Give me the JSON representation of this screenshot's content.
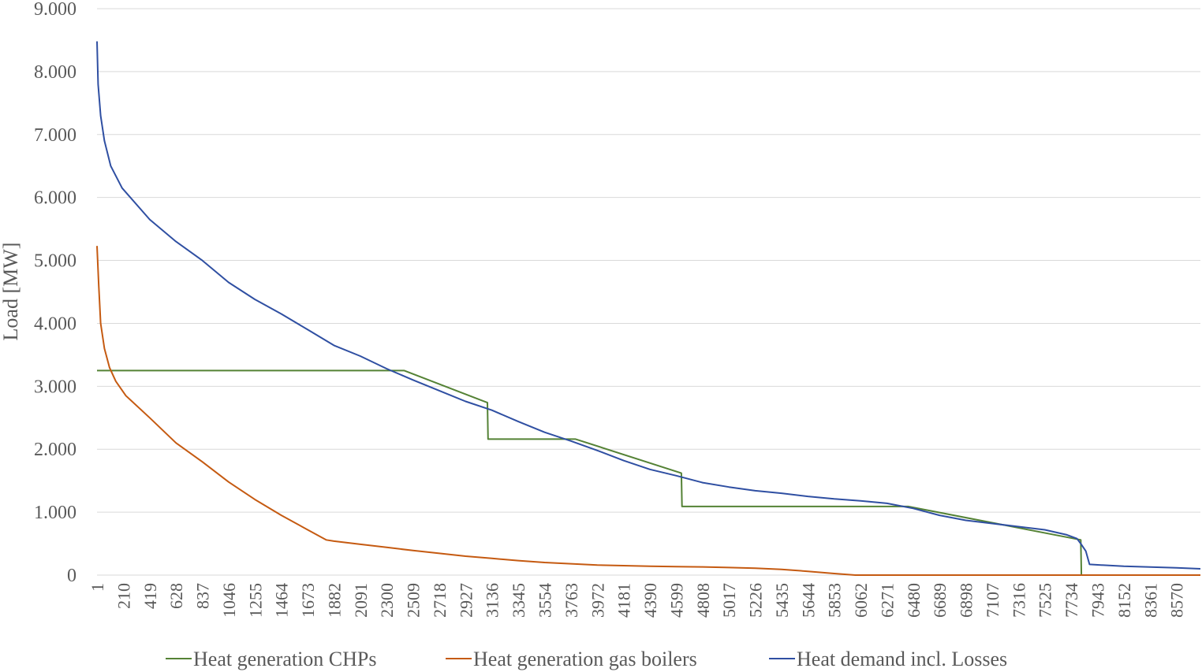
{
  "chart_data": {
    "type": "line",
    "title": "",
    "xlabel": "",
    "ylabel": "Load [MW]",
    "xlim": [
      1,
      8760
    ],
    "ylim": [
      0,
      9000
    ],
    "y_ticks": [
      0,
      1000,
      2000,
      3000,
      4000,
      5000,
      6000,
      7000,
      8000,
      9000
    ],
    "y_tick_labels": [
      "0",
      "1.000",
      "2.000",
      "3.000",
      "4.000",
      "5.000",
      "6.000",
      "7.000",
      "8.000",
      "9.000"
    ],
    "x_ticks": [
      1,
      210,
      419,
      628,
      837,
      1046,
      1255,
      1464,
      1673,
      1882,
      2091,
      2300,
      2509,
      2718,
      2927,
      3136,
      3345,
      3554,
      3763,
      3972,
      4181,
      4390,
      4599,
      4808,
      5017,
      5226,
      5435,
      5644,
      5853,
      6062,
      6271,
      6480,
      6689,
      6898,
      7107,
      7316,
      7525,
      7734,
      7943,
      8152,
      8361,
      8570
    ],
    "grid": "horizontal",
    "legend_position": "bottom",
    "series": [
      {
        "name": "Heat generation CHPs",
        "color": "#548235",
        "points": [
          [
            1,
            3250
          ],
          [
            2440,
            3250
          ],
          [
            3100,
            2740
          ],
          [
            3105,
            2160
          ],
          [
            3800,
            2160
          ],
          [
            3800,
            2160
          ],
          [
            4640,
            1620
          ],
          [
            4645,
            1090
          ],
          [
            6440,
            1090
          ],
          [
            7810,
            560
          ],
          [
            7815,
            0
          ],
          [
            8760,
            0
          ]
        ]
      },
      {
        "name": "Heat generation gas boilers",
        "color": "#c55a11",
        "points": [
          [
            1,
            5230
          ],
          [
            15,
            4600
          ],
          [
            30,
            4000
          ],
          [
            60,
            3600
          ],
          [
            100,
            3300
          ],
          [
            150,
            3080
          ],
          [
            230,
            2850
          ],
          [
            419,
            2500
          ],
          [
            628,
            2100
          ],
          [
            837,
            1800
          ],
          [
            1046,
            1480
          ],
          [
            1255,
            1200
          ],
          [
            1464,
            950
          ],
          [
            1673,
            720
          ],
          [
            1820,
            560
          ],
          [
            1882,
            540
          ],
          [
            2091,
            490
          ],
          [
            2300,
            440
          ],
          [
            2509,
            390
          ],
          [
            2718,
            345
          ],
          [
            2927,
            300
          ],
          [
            3136,
            265
          ],
          [
            3345,
            230
          ],
          [
            3554,
            200
          ],
          [
            3763,
            180
          ],
          [
            3972,
            160
          ],
          [
            4181,
            150
          ],
          [
            4390,
            140
          ],
          [
            4599,
            135
          ],
          [
            4808,
            130
          ],
          [
            5017,
            120
          ],
          [
            5226,
            110
          ],
          [
            5435,
            90
          ],
          [
            5644,
            60
          ],
          [
            5853,
            25
          ],
          [
            6020,
            0
          ],
          [
            8760,
            0
          ]
        ]
      },
      {
        "name": "Heat demand incl. Losses",
        "color": "#2f4fa2",
        "points": [
          [
            1,
            8480
          ],
          [
            10,
            7800
          ],
          [
            30,
            7300
          ],
          [
            60,
            6900
          ],
          [
            110,
            6500
          ],
          [
            200,
            6150
          ],
          [
            419,
            5650
          ],
          [
            628,
            5300
          ],
          [
            837,
            5000
          ],
          [
            1046,
            4650
          ],
          [
            1255,
            4380
          ],
          [
            1464,
            4150
          ],
          [
            1673,
            3900
          ],
          [
            1882,
            3650
          ],
          [
            2091,
            3480
          ],
          [
            2300,
            3280
          ],
          [
            2509,
            3100
          ],
          [
            2718,
            2930
          ],
          [
            2927,
            2760
          ],
          [
            3136,
            2620
          ],
          [
            3345,
            2440
          ],
          [
            3554,
            2270
          ],
          [
            3763,
            2130
          ],
          [
            3972,
            1980
          ],
          [
            4181,
            1820
          ],
          [
            4390,
            1680
          ],
          [
            4599,
            1580
          ],
          [
            4808,
            1470
          ],
          [
            5017,
            1400
          ],
          [
            5226,
            1340
          ],
          [
            5435,
            1300
          ],
          [
            5644,
            1250
          ],
          [
            5853,
            1210
          ],
          [
            6062,
            1180
          ],
          [
            6271,
            1140
          ],
          [
            6480,
            1060
          ],
          [
            6689,
            950
          ],
          [
            6898,
            870
          ],
          [
            7107,
            820
          ],
          [
            7316,
            770
          ],
          [
            7525,
            720
          ],
          [
            7700,
            640
          ],
          [
            7780,
            580
          ],
          [
            7810,
            500
          ],
          [
            7850,
            380
          ],
          [
            7880,
            170
          ],
          [
            8152,
            140
          ],
          [
            8570,
            115
          ],
          [
            8760,
            100
          ]
        ]
      }
    ]
  }
}
